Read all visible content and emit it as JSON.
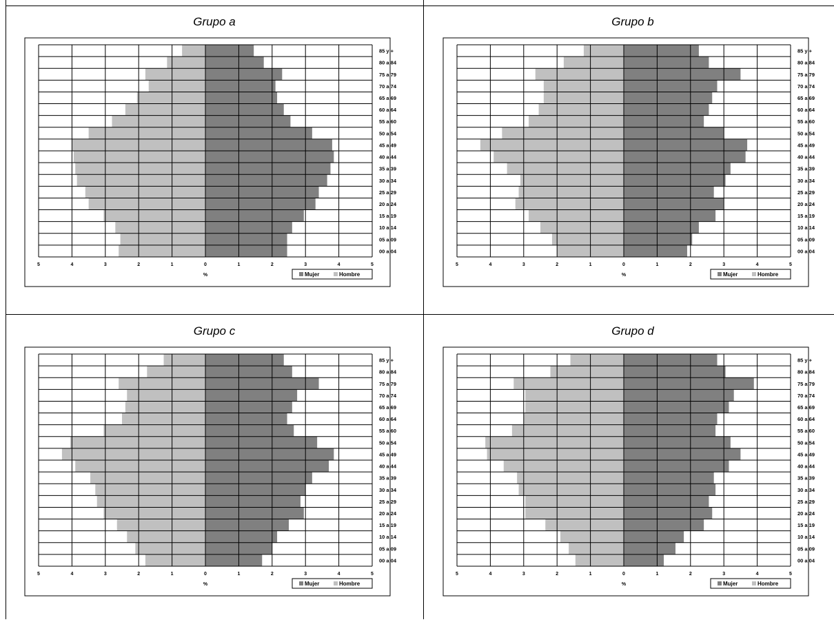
{
  "colors": {
    "mujer": "#808080",
    "hombre": "#c0c0c0",
    "frame": "#000000"
  },
  "chart_data": [
    {
      "type": "bar",
      "title": "Grupo a",
      "xlabel": "%",
      "xlim": [
        -5,
        5
      ],
      "x_ticks": [
        "5",
        "4",
        "3",
        "2",
        "1",
        "0",
        "1",
        "2",
        "3",
        "4",
        "5"
      ],
      "categories": [
        "85 y +",
        "80 a 84",
        "75 a 79",
        "70 a 74",
        "65 a 69",
        "60 a 64",
        "55 a 60",
        "50 a 54",
        "45 a 49",
        "40 a 44",
        "35 a 39",
        "30 a 34",
        "25 a 29",
        "20 a 24",
        "15 a 19",
        "10 a 14",
        "05 a 09",
        "00 a 04"
      ],
      "series": [
        {
          "name": "Mujer",
          "values": [
            1.45,
            1.75,
            2.3,
            2.1,
            2.15,
            2.35,
            2.55,
            3.2,
            3.8,
            3.85,
            3.75,
            3.65,
            3.4,
            3.3,
            2.95,
            2.6,
            2.45,
            2.45
          ]
        },
        {
          "name": "Hombre",
          "values": [
            0.7,
            1.15,
            1.8,
            1.7,
            2.05,
            2.4,
            2.8,
            3.5,
            4.0,
            3.95,
            3.9,
            3.85,
            3.6,
            3.5,
            3.05,
            2.7,
            2.55,
            2.6
          ]
        }
      ],
      "legend": [
        "Mujer",
        "Hombre"
      ],
      "legend_position": "bottom-right",
      "grid": true
    },
    {
      "type": "bar",
      "title": "Grupo b",
      "xlabel": "%",
      "xlim": [
        -5,
        5
      ],
      "x_ticks": [
        "5",
        "4",
        "3",
        "2",
        "1",
        "0",
        "1",
        "2",
        "3",
        "4",
        "5"
      ],
      "categories": [
        "85 y +",
        "80 a 84",
        "75 a 79",
        "70 a 74",
        "65 a 69",
        "60 a 64",
        "55 a 60",
        "50 a 54",
        "45 a 49",
        "40 a 44",
        "35 a 39",
        "30 a 34",
        "25 a 29",
        "20 a 24",
        "15 a 19",
        "10 a 14",
        "05 a 09",
        "00 a 04"
      ],
      "series": [
        {
          "name": "Mujer",
          "values": [
            2.25,
            2.55,
            3.5,
            2.8,
            2.65,
            2.55,
            2.4,
            3.0,
            3.7,
            3.65,
            3.2,
            3.05,
            2.7,
            3.0,
            2.75,
            2.25,
            2.05,
            1.9
          ]
        },
        {
          "name": "Hombre",
          "values": [
            1.2,
            1.8,
            2.65,
            2.4,
            2.4,
            2.55,
            2.85,
            3.65,
            4.3,
            3.9,
            3.5,
            3.1,
            3.15,
            3.25,
            2.85,
            2.5,
            2.15,
            2.0
          ]
        }
      ],
      "legend": [
        "Mujer",
        "Hombre"
      ],
      "legend_position": "bottom-right",
      "grid": true
    },
    {
      "type": "bar",
      "title": "Grupo c",
      "xlabel": "%",
      "xlim": [
        -5,
        5
      ],
      "x_ticks": [
        "5",
        "4",
        "3",
        "2",
        "1",
        "0",
        "1",
        "2",
        "3",
        "4",
        "5"
      ],
      "categories": [
        "85 y +",
        "80 a 84",
        "75 a 79",
        "70 a 74",
        "65 a 69",
        "60 a 64",
        "55 a 60",
        "50 a 54",
        "45 a 49",
        "40 a 44",
        "35 a 39",
        "30 a 34",
        "25 a 29",
        "20 a 24",
        "15 a 19",
        "10 a 14",
        "05 a 09",
        "00 a 04"
      ],
      "series": [
        {
          "name": "Mujer",
          "values": [
            2.35,
            2.6,
            3.4,
            2.75,
            2.6,
            2.45,
            2.65,
            3.35,
            3.85,
            3.7,
            3.2,
            3.0,
            2.85,
            2.95,
            2.5,
            2.15,
            2.0,
            1.7
          ]
        },
        {
          "name": "Hombre",
          "values": [
            1.25,
            1.75,
            2.6,
            2.35,
            2.4,
            2.5,
            3.05,
            4.05,
            4.3,
            3.9,
            3.45,
            3.3,
            3.25,
            3.05,
            2.65,
            2.35,
            2.1,
            1.8
          ]
        }
      ],
      "legend": [
        "Mujer",
        "Hombre"
      ],
      "legend_position": "bottom-right",
      "grid": true
    },
    {
      "type": "bar",
      "title": "Grupo d",
      "xlabel": "%",
      "xlim": [
        -5,
        5
      ],
      "x_ticks": [
        "5",
        "4",
        "3",
        "2",
        "1",
        "0",
        "1",
        "2",
        "3",
        "4",
        "5"
      ],
      "categories": [
        "85 y +",
        "80 a 84",
        "75 a 79",
        "70 a 74",
        "65 a 69",
        "60 a 64",
        "55 a 60",
        "50 a 54",
        "45 a 49",
        "40 a 44",
        "35 a 39",
        "30 a 34",
        "25 a 29",
        "20 a 24",
        "15 a 19",
        "10 a 14",
        "05 a 09",
        "00 a 04"
      ],
      "series": [
        {
          "name": "Mujer",
          "values": [
            2.8,
            3.05,
            3.9,
            3.3,
            3.15,
            2.8,
            2.75,
            3.2,
            3.5,
            3.15,
            2.7,
            2.75,
            2.55,
            2.65,
            2.4,
            1.8,
            1.55,
            1.2
          ]
        },
        {
          "name": "Hombre",
          "values": [
            1.6,
            2.2,
            3.3,
            2.95,
            2.95,
            3.0,
            3.35,
            4.15,
            4.1,
            3.6,
            3.2,
            3.15,
            2.95,
            2.95,
            2.35,
            1.9,
            1.65,
            1.45
          ]
        }
      ],
      "legend": [
        "Mujer",
        "Hombre"
      ],
      "legend_position": "bottom-right",
      "grid": true
    }
  ]
}
